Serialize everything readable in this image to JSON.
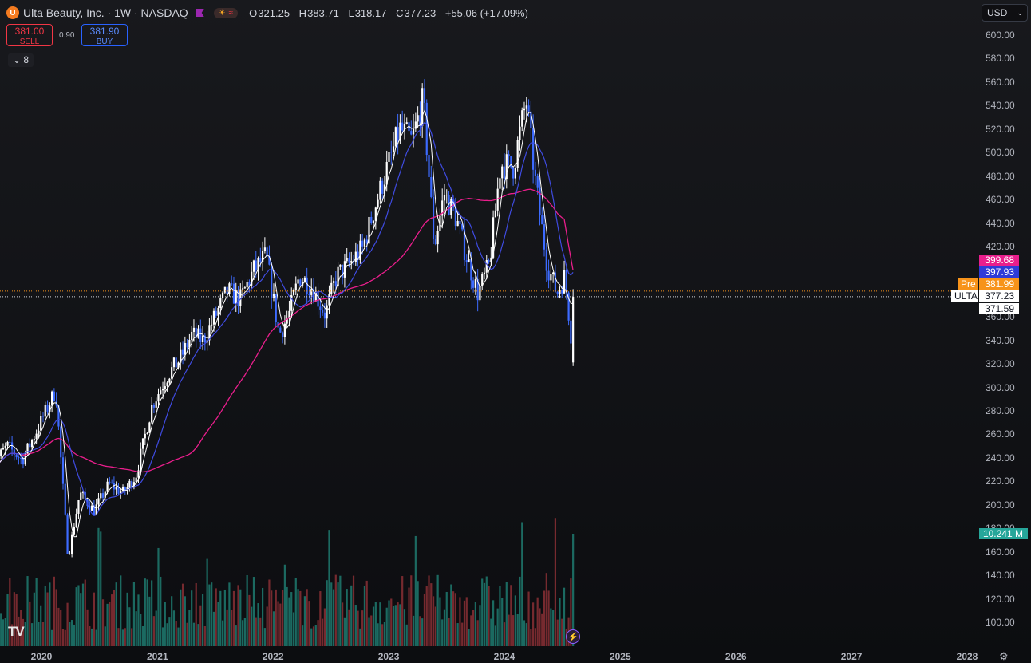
{
  "header": {
    "logo_letter": "U",
    "title": "Ulta Beauty, Inc. · 1W · NASDAQ",
    "ohlc": {
      "o_key": "O",
      "o_val": "321.25",
      "h_key": "H",
      "h_val": "383.71",
      "l_key": "L",
      "l_val": "318.17",
      "c_key": "C",
      "c_val": "377.23",
      "change": "+55.06 (+17.09%)"
    }
  },
  "trade": {
    "sell_price": "381.00",
    "sell_label": "SELL",
    "spread": "0.90",
    "buy_price": "381.90",
    "buy_label": "BUY"
  },
  "indicator_count": "8",
  "currency": "USD",
  "price_tags": [
    {
      "label": "",
      "value": "399.68",
      "color": "#e91e8c"
    },
    {
      "label": "",
      "value": "397.93",
      "color": "#2f3bd8"
    },
    {
      "label": "Pre",
      "value": "381.99",
      "color": "#f7931a"
    },
    {
      "label": "ULTA",
      "value": "377.23",
      "color": "#ffffff"
    },
    {
      "label": "",
      "value": "371.59",
      "color": "#ffffff"
    }
  ],
  "volume_tag": {
    "value": "10.241 M",
    "color": "#26a69a"
  },
  "chart_data": {
    "type": "candlestick",
    "interval": "1W",
    "symbol": "ULTA",
    "y_axis": {
      "min": 100,
      "max": 600,
      "ticks": [
        "100.00",
        "120.00",
        "140.00",
        "160.00",
        "180.00",
        "200.00",
        "220.00",
        "240.00",
        "260.00",
        "280.00",
        "300.00",
        "320.00",
        "340.00",
        "360.00",
        "380.00",
        "400.00",
        "420.00",
        "440.00",
        "460.00",
        "480.00",
        "500.00",
        "520.00",
        "540.00",
        "560.00",
        "580.00",
        "600.00"
      ]
    },
    "x_axis": {
      "labels": [
        "2020",
        "2021",
        "2022",
        "2023",
        "2024",
        "2025",
        "2026",
        "2027",
        "2028"
      ]
    },
    "price_path": [
      [
        "2019-08-01",
        235
      ],
      [
        "2019-09-15",
        250
      ],
      [
        "2019-11-01",
        238
      ],
      [
        "2019-12-20",
        265
      ],
      [
        "2020-02-15",
        298
      ],
      [
        "2020-03-25",
        155
      ],
      [
        "2020-05-01",
        210
      ],
      [
        "2020-06-15",
        195
      ],
      [
        "2020-08-01",
        218
      ],
      [
        "2020-09-15",
        210
      ],
      [
        "2020-10-25",
        225
      ],
      [
        "2020-12-15",
        285
      ],
      [
        "2021-02-01",
        310
      ],
      [
        "2021-03-15",
        325
      ],
      [
        "2021-04-20",
        345
      ],
      [
        "2021-05-25",
        340
      ],
      [
        "2021-07-01",
        360
      ],
      [
        "2021-08-10",
        382
      ],
      [
        "2021-09-20",
        375
      ],
      [
        "2021-11-01",
        400
      ],
      [
        "2021-12-10",
        412
      ],
      [
        "2022-01-20",
        345
      ],
      [
        "2022-02-20",
        362
      ],
      [
        "2022-03-25",
        395
      ],
      [
        "2022-05-05",
        385
      ],
      [
        "2022-06-15",
        362
      ],
      [
        "2022-07-20",
        395
      ],
      [
        "2022-08-30",
        405
      ],
      [
        "2022-10-10",
        418
      ],
      [
        "2022-11-20",
        455
      ],
      [
        "2022-12-25",
        485
      ],
      [
        "2023-02-05",
        520
      ],
      [
        "2023-03-15",
        510
      ],
      [
        "2023-04-20",
        545
      ],
      [
        "2023-05-25",
        420
      ],
      [
        "2023-06-25",
        465
      ],
      [
        "2023-08-01",
        445
      ],
      [
        "2023-09-05",
        410
      ],
      [
        "2023-10-10",
        380
      ],
      [
        "2023-11-15",
        405
      ],
      [
        "2023-12-20",
        490
      ],
      [
        "2024-01-30",
        488
      ],
      [
        "2024-03-10",
        545
      ],
      [
        "2024-04-10",
        470
      ],
      [
        "2024-05-15",
        405
      ],
      [
        "2024-06-15",
        380
      ],
      [
        "2024-07-10",
        395
      ],
      [
        "2024-07-31",
        340
      ],
      [
        "2024-08-09",
        377
      ]
    ],
    "overlays": [
      {
        "type": "moving-average",
        "color": "#e91e8c",
        "last": 399.68
      },
      {
        "type": "moving-average",
        "color": "#3f4be0",
        "last": 397.93
      },
      {
        "type": "moving-average",
        "color": "#ffffff",
        "last": 371.59
      }
    ],
    "last_price": 377.23,
    "premarket_price": 381.99,
    "last_volume": "10.241 M"
  },
  "icons": {
    "logo": "tradingview-logo-icon",
    "settings": "gear-icon"
  }
}
